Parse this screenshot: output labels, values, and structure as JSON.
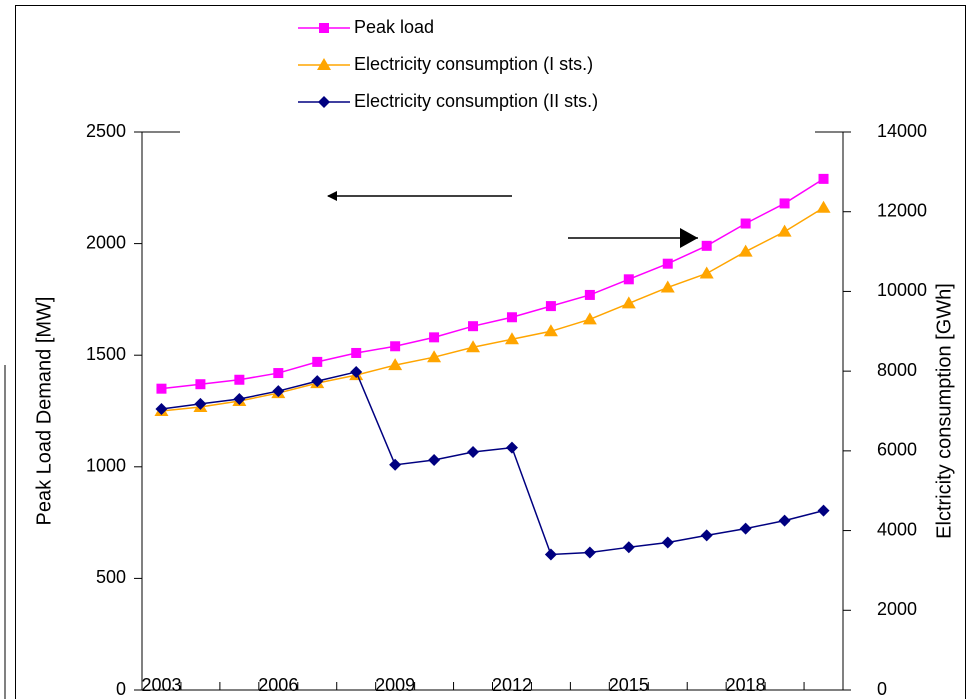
{
  "chart_data": {
    "type": "line",
    "y_label": "Peak Load Demand [MW]",
    "y2_label": "Elctricity consumption [GWh]",
    "categories": [
      "2003",
      null,
      null,
      "2006",
      null,
      null,
      "2009",
      null,
      null,
      "2012",
      null,
      null,
      "2015",
      null,
      null,
      "2018",
      null,
      null
    ],
    "ylim": [
      0,
      2500
    ],
    "yticks": [
      0,
      500,
      1000,
      1500,
      2000,
      2500
    ],
    "y2lim": [
      0,
      14000
    ],
    "y2ticks": [
      0,
      2000,
      4000,
      6000,
      8000,
      10000,
      12000,
      14000
    ],
    "series": [
      {
        "name": "Peak load",
        "color": "#ff00ff",
        "marker": "square",
        "values": [
          1350,
          1370,
          1390,
          1420,
          1470,
          1510,
          1540,
          1580,
          1630,
          1670,
          1720,
          1770,
          1840,
          1910,
          1990,
          2090,
          2180,
          2290
        ]
      },
      {
        "name": "Electricity consumption (I sts.)",
        "color": "#ffa500",
        "marker": "triangle",
        "axis": "y2",
        "values": [
          7000,
          7100,
          7250,
          7450,
          7700,
          7900,
          8150,
          8350,
          8600,
          8800,
          9000,
          9300,
          9700,
          10100,
          10450,
          11000,
          11500,
          12100
        ]
      },
      {
        "name": "Electricity consumption (II sts.)",
        "color": "#000080",
        "marker": "diamond",
        "axis": "y2",
        "values": [
          7050,
          7180,
          7300,
          7500,
          7750,
          7980,
          5650,
          5770,
          5970,
          6080,
          3400,
          3450,
          3580,
          3700,
          3880,
          4050,
          4250,
          4500
        ]
      }
    ]
  }
}
